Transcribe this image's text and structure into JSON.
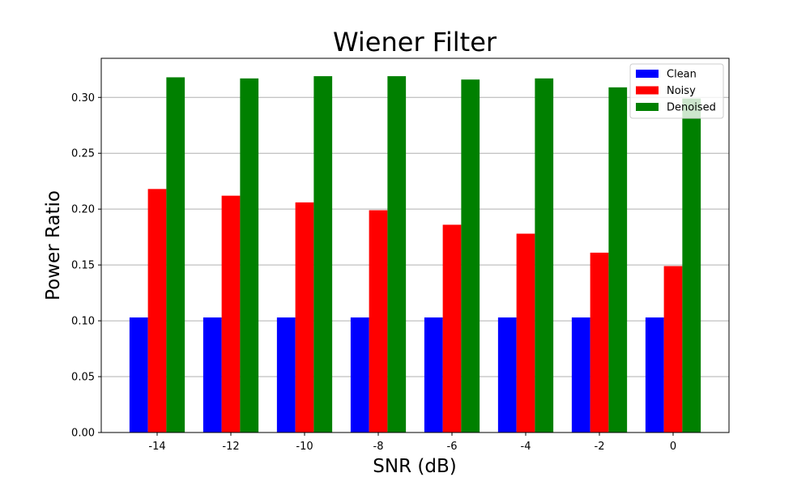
{
  "chart_data": {
    "type": "bar",
    "title": "Wiener Filter",
    "xlabel": "SNR (dB)",
    "ylabel": "Power Ratio",
    "categories": [
      "-14",
      "-12",
      "-10",
      "-8",
      "-6",
      "-4",
      "-2",
      "0"
    ],
    "series": [
      {
        "name": "Clean",
        "color": "#0000ff",
        "values": [
          0.103,
          0.103,
          0.103,
          0.103,
          0.103,
          0.103,
          0.103,
          0.103
        ]
      },
      {
        "name": "Noisy",
        "color": "#ff0000",
        "values": [
          0.218,
          0.212,
          0.206,
          0.199,
          0.186,
          0.178,
          0.161,
          0.149
        ]
      },
      {
        "name": "Denoised",
        "color": "#008000",
        "values": [
          0.318,
          0.317,
          0.319,
          0.319,
          0.316,
          0.317,
          0.309,
          0.299
        ]
      }
    ],
    "ylim": [
      0,
      0.335
    ],
    "yticks": [
      "0.00",
      "0.05",
      "0.10",
      "0.15",
      "0.20",
      "0.25",
      "0.30"
    ],
    "grid": "horizontal",
    "legend": "top-right"
  }
}
